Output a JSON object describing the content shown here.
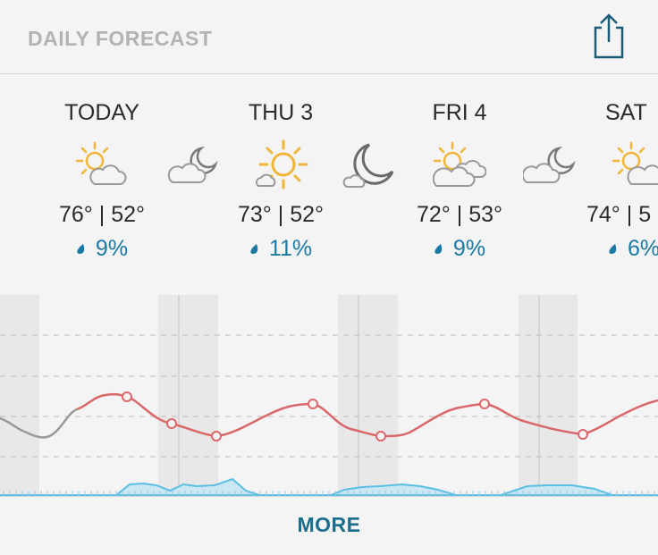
{
  "header": {
    "title": "DAILY FORECAST"
  },
  "days": [
    {
      "label": "TODAY",
      "temps": "76° | 52°",
      "precip": "9%",
      "day_icon": "partly-sunny-icon",
      "night_icon": "partly-cloudy-night-icon"
    },
    {
      "label": "THU 3",
      "temps": "73° | 52°",
      "precip": "11%",
      "day_icon": "sunny-icon",
      "night_icon": "clear-night-icon"
    },
    {
      "label": "FRI 4",
      "temps": "72° | 53°",
      "precip": "9%",
      "day_icon": "partly-sunny-icon",
      "night_icon": "partly-cloudy-night-icon"
    },
    {
      "label": "SAT",
      "temps": "74° | 5",
      "precip": "6%",
      "day_icon": "partly-sunny-icon",
      "night_icon": ""
    }
  ],
  "colors": {
    "temperature_line": "#d9686b",
    "past_line": "#9a9a9a",
    "precip_fill": "#cbe7f4",
    "precip_line": "#5bbfe3",
    "night_band": "#e8e8e8",
    "accent": "#1b6d8e"
  },
  "footer": {
    "more_label": "MORE"
  }
}
